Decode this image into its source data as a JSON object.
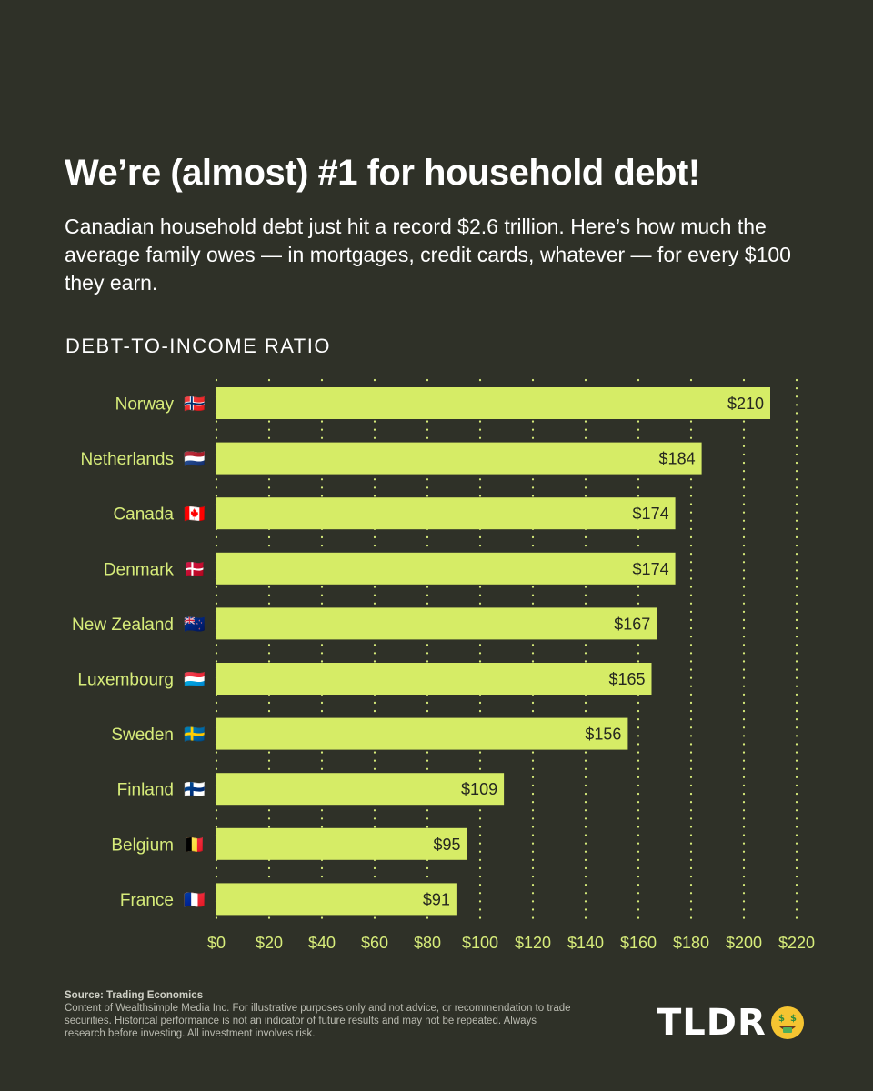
{
  "header": {
    "title": "We’re (almost) #1 for household debt!",
    "subtitle": "Canadian household debt just hit a record $2.6 trillion. Here’s how much the average family owes — in mortgages, credit cards, whatever — for every $100 they earn."
  },
  "chart_data": {
    "type": "bar",
    "orientation": "horizontal",
    "title": "DEBT-TO-INCOME RATIO",
    "categories": [
      "Norway",
      "Netherlands",
      "Canada",
      "Denmark",
      "New Zealand",
      "Luxembourg",
      "Sweden",
      "Finland",
      "Belgium",
      "France"
    ],
    "flags": [
      "🇳🇴",
      "🇳🇱",
      "🇨🇦",
      "🇩🇰",
      "🇳🇿",
      "🇱🇺",
      "🇸🇪",
      "🇫🇮",
      "🇧🇪",
      "🇫🇷"
    ],
    "values": [
      210,
      184,
      174,
      174,
      167,
      165,
      156,
      109,
      95,
      91
    ],
    "value_labels": [
      "$210",
      "$184",
      "$174",
      "$174",
      "$167",
      "$165",
      "$156",
      "$109",
      "$95",
      "$91"
    ],
    "xlim": [
      0,
      220
    ],
    "xticks": [
      0,
      20,
      40,
      60,
      80,
      100,
      120,
      140,
      160,
      180,
      200,
      220
    ],
    "xtick_labels": [
      "$0",
      "$20",
      "$40",
      "$60",
      "$80",
      "$100",
      "$120",
      "$140",
      "$160",
      "$180",
      "$200",
      "$220"
    ],
    "grid": "dotted vertical",
    "bar_color": "#d6ec66"
  },
  "footer": {
    "source": "Source: Trading Economics",
    "disclaimer": "Content of Wealthsimple Media Inc. For illustrative purposes only and not advice, or recommendation to trade securities. Historical performance is not an indicator of future results and may not be repeated. Always research before investing. All investment involves risk."
  },
  "brand": {
    "logo_text": "TLDR",
    "logo_emoji": "🤑"
  }
}
